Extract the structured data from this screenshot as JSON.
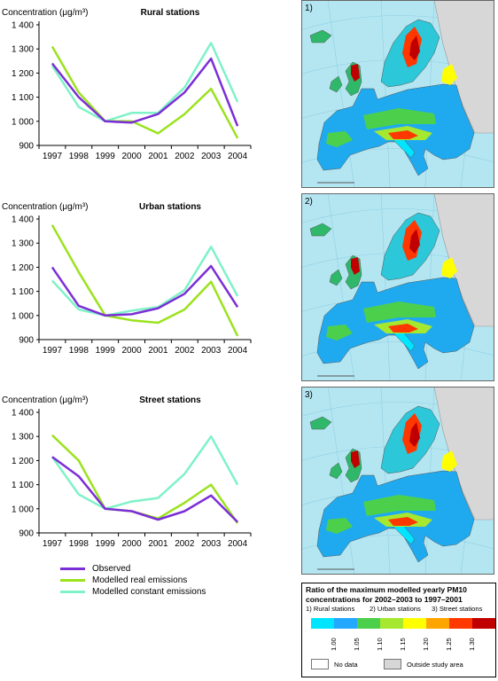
{
  "charts": [
    {
      "title": "Rural stations",
      "ylabel": "Concentration (μg/m³)"
    },
    {
      "title": "Urban stations",
      "ylabel": "Concentration (μg/m³)"
    },
    {
      "title": "Street stations",
      "ylabel": "Concentration (μg/m³)"
    }
  ],
  "legend": {
    "items": [
      "Observed",
      "Modelled real emissions",
      "Modelled constant emissions"
    ]
  },
  "maps": [
    {
      "label": "1)"
    },
    {
      "label": "2)"
    },
    {
      "label": "3)"
    }
  ],
  "map_scale": {
    "title": "Ratio of the maximum modelled yearly PM10 concentrations for 2002–2003 to 1997–2001",
    "sub": [
      "1) Rural stations",
      "2) Urban stations",
      "3) Street stations"
    ],
    "ticks": [
      "1.00",
      "1.05",
      "1.10",
      "1.15",
      "1.20",
      "1.25",
      "1.30"
    ],
    "colors": [
      "#00e5ff",
      "#22a9ff",
      "#4cd04c",
      "#a6e830",
      "#ffff00",
      "#ffa500",
      "#ff3800",
      "#c00000"
    ],
    "no_data": "No data",
    "outside": "Outside study area"
  },
  "chart_data": [
    {
      "type": "line",
      "title": "Rural stations",
      "ylabel": "Concentration (μg/m³)",
      "x": [
        "1997",
        "1998",
        "1999",
        "2000",
        "2001",
        "2002",
        "2003",
        "2004"
      ],
      "ylim": [
        900,
        1400
      ],
      "yticks": [
        900,
        1000,
        1100,
        1200,
        1300,
        1400
      ],
      "ytick_labels": [
        "900",
        "1 000",
        "1 100",
        "1 200",
        "1 300",
        "1 400"
      ],
      "series": [
        {
          "name": "Observed",
          "color": "#7b2ed6",
          "values": [
            1240,
            1100,
            1000,
            995,
            1030,
            1120,
            1260,
            980
          ]
        },
        {
          "name": "Modelled real emissions",
          "color": "#9be21e",
          "values": [
            1310,
            1120,
            1000,
            1000,
            950,
            1030,
            1135,
            930
          ]
        },
        {
          "name": "Modelled constant emissions",
          "color": "#7ff2c8",
          "values": [
            1230,
            1060,
            1000,
            1035,
            1035,
            1140,
            1325,
            1080
          ]
        }
      ]
    },
    {
      "type": "line",
      "title": "Urban stations",
      "ylabel": "Concentration (μg/m³)",
      "x": [
        "1997",
        "1998",
        "1999",
        "2000",
        "2001",
        "2002",
        "2003",
        "2004"
      ],
      "ylim": [
        900,
        1400
      ],
      "yticks": [
        900,
        1000,
        1100,
        1200,
        1300,
        1400
      ],
      "ytick_labels": [
        "900",
        "1 000",
        "1 100",
        "1 200",
        "1 300",
        "1 400"
      ],
      "series": [
        {
          "name": "Observed",
          "color": "#7b2ed6",
          "values": [
            1200,
            1040,
            1000,
            1005,
            1030,
            1090,
            1205,
            1035
          ]
        },
        {
          "name": "Modelled real emissions",
          "color": "#9be21e",
          "values": [
            1375,
            1180,
            1000,
            980,
            970,
            1025,
            1140,
            915
          ]
        },
        {
          "name": "Modelled constant emissions",
          "color": "#7ff2c8",
          "values": [
            1145,
            1025,
            1000,
            1020,
            1035,
            1105,
            1285,
            1080
          ]
        }
      ]
    },
    {
      "type": "line",
      "title": "Street stations",
      "ylabel": "Concentration (μg/m³)",
      "x": [
        "1997",
        "1998",
        "1999",
        "2000",
        "2001",
        "2002",
        "2003",
        "2004"
      ],
      "ylim": [
        900,
        1400
      ],
      "yticks": [
        900,
        1000,
        1100,
        1200,
        1300,
        1400
      ],
      "ytick_labels": [
        "900",
        "1 000",
        "1 100",
        "1 200",
        "1 300",
        "1 400"
      ],
      "series": [
        {
          "name": "Observed",
          "color": "#7b2ed6",
          "values": [
            1215,
            1135,
            1000,
            990,
            955,
            990,
            1055,
            945
          ]
        },
        {
          "name": "Modelled real emissions",
          "color": "#9be21e",
          "values": [
            1305,
            1200,
            1000,
            990,
            960,
            1025,
            1100,
            940
          ]
        },
        {
          "name": "Modelled constant emissions",
          "color": "#7ff2c8",
          "values": [
            1215,
            1060,
            1000,
            1030,
            1045,
            1145,
            1300,
            1100
          ]
        }
      ]
    }
  ]
}
